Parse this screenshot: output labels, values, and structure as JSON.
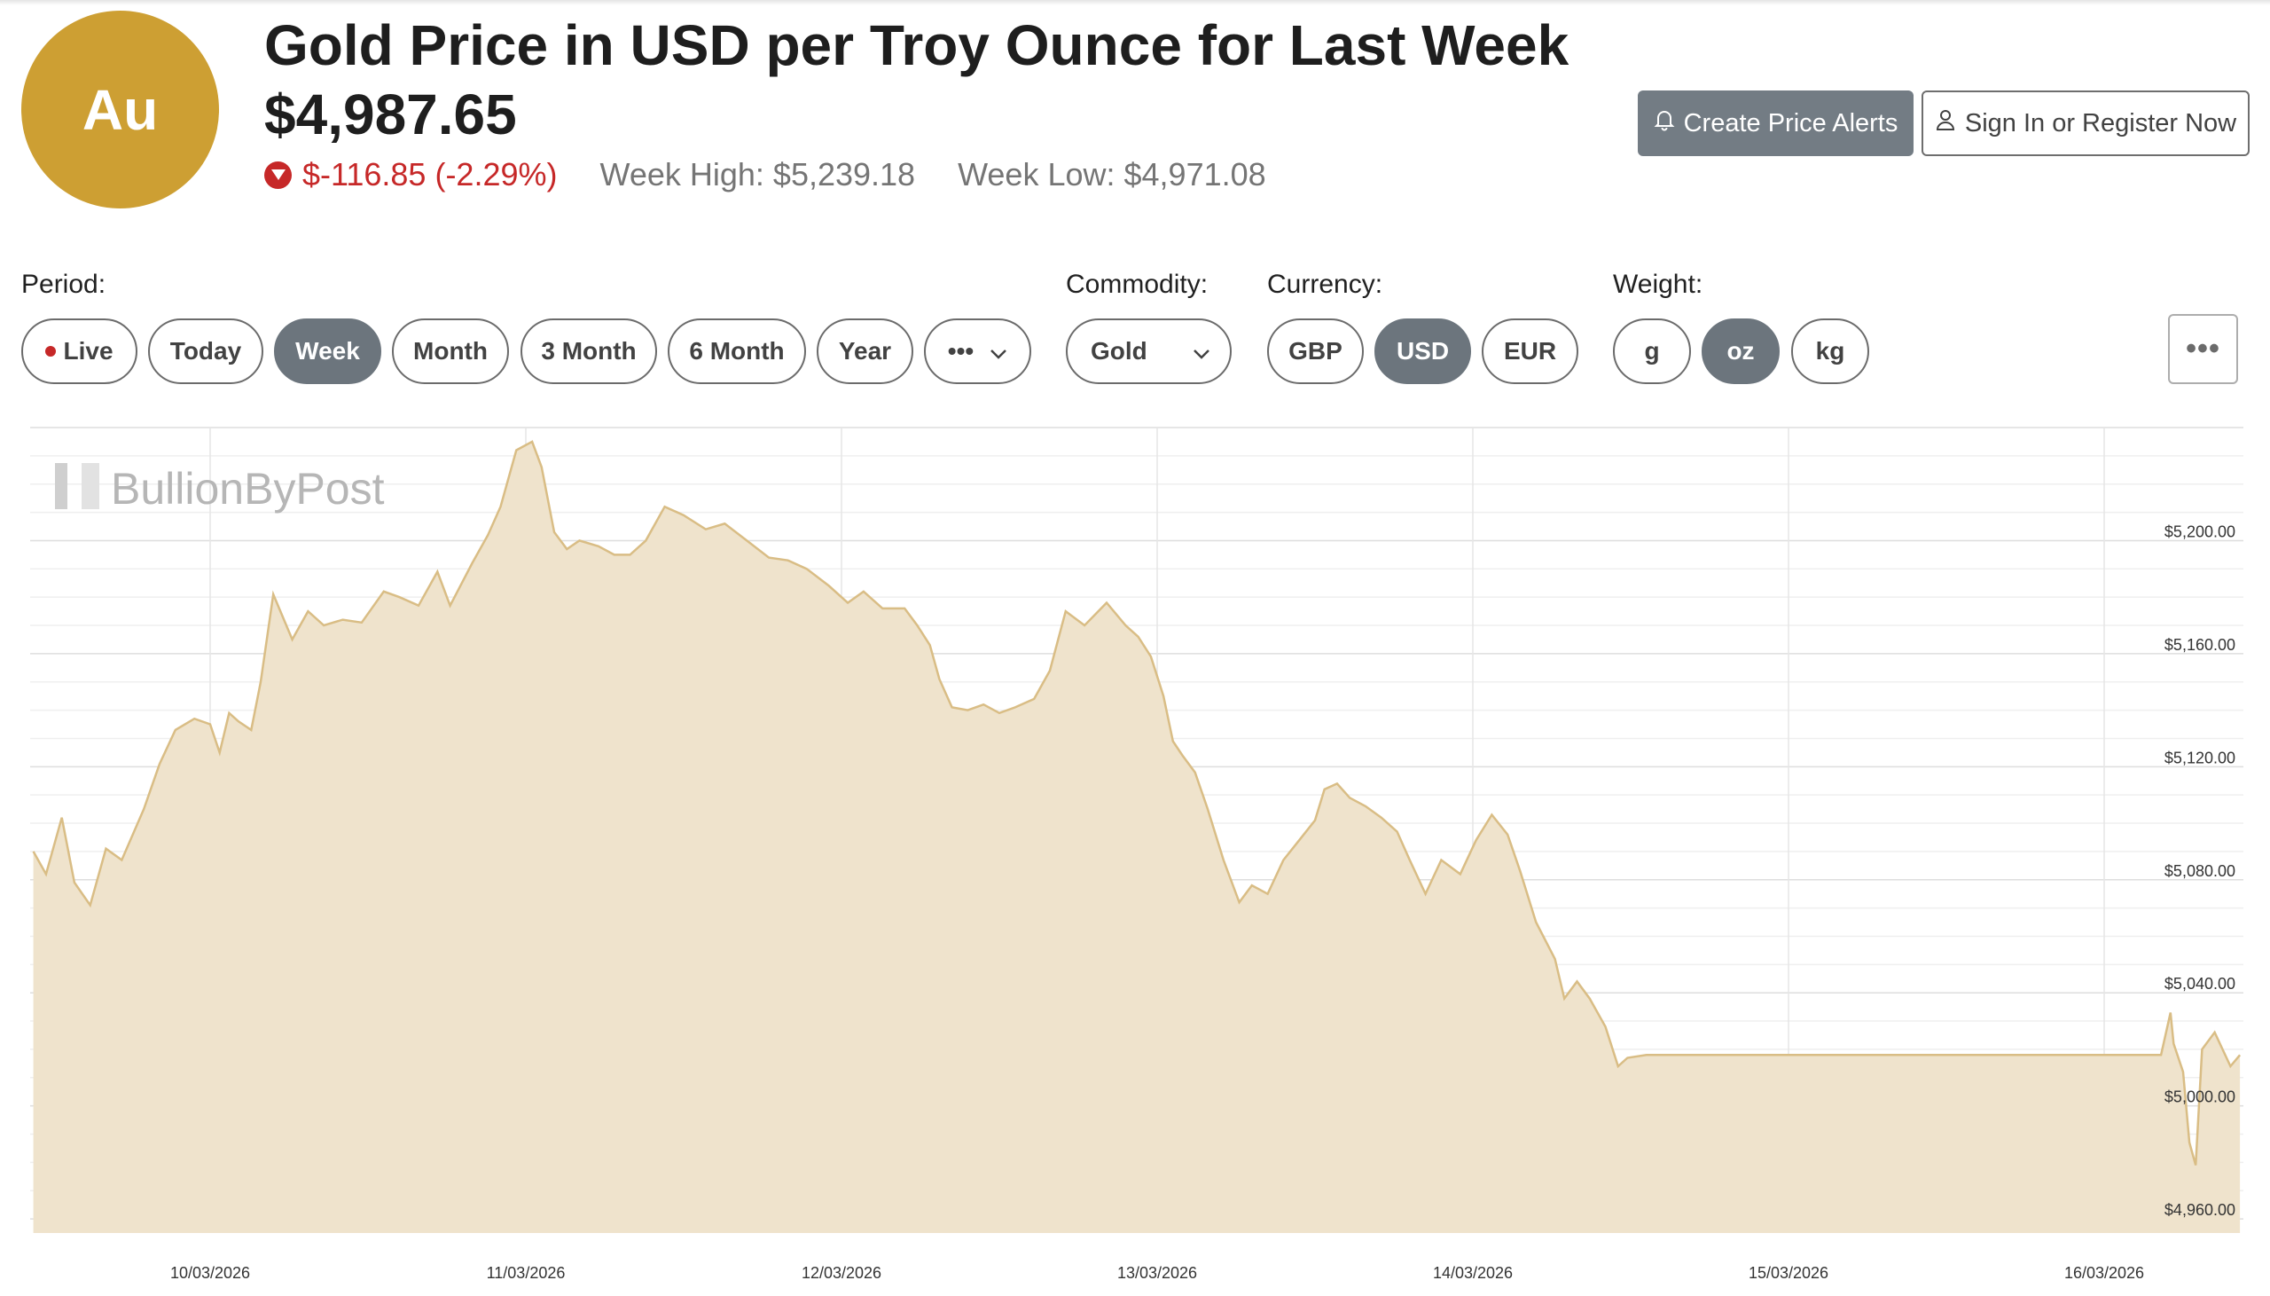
{
  "header": {
    "logo_text": "Au",
    "title": "Gold Price in USD per Troy Ounce for Last Week",
    "price": "$4,987.65",
    "change": "$-116.85 (-2.29%)",
    "week_high": "Week High: $5,239.18",
    "week_low": "Week Low: $4,971.08",
    "change_icon": "triangle-down-icon",
    "accent_color": "#cd9f33",
    "down_color": "#c62828"
  },
  "actions": {
    "create_alerts": "Create Price Alerts",
    "sign_in": "Sign In or Register Now"
  },
  "controls": {
    "period_label": "Period:",
    "periods": [
      "Live",
      "Today",
      "Week",
      "Month",
      "3 Month",
      "6 Month",
      "Year"
    ],
    "period_more": "•••",
    "selected_period": "Week",
    "commodity_label": "Commodity:",
    "commodity": "Gold",
    "currency_label": "Currency:",
    "currencies": [
      "GBP",
      "USD",
      "EUR"
    ],
    "selected_currency": "USD",
    "weight_label": "Weight:",
    "weights": [
      "g",
      "oz",
      "kg"
    ],
    "selected_weight": "oz",
    "more_menu": "•••"
  },
  "chart_data": {
    "type": "area",
    "watermark": "BullionByPost",
    "x_tick_labels": [
      "10/03/2026",
      "11/03/2026",
      "12/03/2026",
      "13/03/2026",
      "14/03/2026",
      "15/03/2026",
      "16/03/2026"
    ],
    "y_tick_labels": [
      "$5,200.00",
      "$5,160.00",
      "$5,120.00",
      "$5,080.00",
      "$5,040.00",
      "$5,000.00",
      "$4,960.00"
    ],
    "ylim": [
      4955,
      5240
    ],
    "xlim": [
      -0.56,
      6.43
    ],
    "grid": true,
    "line_color": "#d9bd85",
    "fill_color": "#efe3cc",
    "series": [
      {
        "points": [
          [
            -0.56,
            5090
          ],
          [
            -0.52,
            5082
          ],
          [
            -0.47,
            5102
          ],
          [
            -0.43,
            5079
          ],
          [
            -0.38,
            5071
          ],
          [
            -0.33,
            5091
          ],
          [
            -0.28,
            5087
          ],
          [
            -0.21,
            5105
          ],
          [
            -0.16,
            5121
          ],
          [
            -0.11,
            5133
          ],
          [
            -0.05,
            5137
          ],
          [
            0.0,
            5135
          ],
          [
            0.03,
            5125
          ],
          [
            0.06,
            5139
          ],
          [
            0.09,
            5136
          ],
          [
            0.13,
            5133
          ],
          [
            0.16,
            5150
          ],
          [
            0.2,
            5181
          ],
          [
            0.26,
            5165
          ],
          [
            0.31,
            5175
          ],
          [
            0.36,
            5170
          ],
          [
            0.42,
            5172
          ],
          [
            0.48,
            5171
          ],
          [
            0.55,
            5182
          ],
          [
            0.6,
            5180
          ],
          [
            0.66,
            5177
          ],
          [
            0.72,
            5189
          ],
          [
            0.76,
            5177
          ],
          [
            0.83,
            5192
          ],
          [
            0.88,
            5202
          ],
          [
            0.92,
            5212
          ],
          [
            0.97,
            5232
          ],
          [
            1.02,
            5235
          ],
          [
            1.05,
            5226
          ],
          [
            1.09,
            5203
          ],
          [
            1.13,
            5197
          ],
          [
            1.17,
            5200
          ],
          [
            1.23,
            5198
          ],
          [
            1.28,
            5195
          ],
          [
            1.33,
            5195
          ],
          [
            1.38,
            5200
          ],
          [
            1.44,
            5212
          ],
          [
            1.5,
            5209
          ],
          [
            1.57,
            5204
          ],
          [
            1.63,
            5206
          ],
          [
            1.7,
            5200
          ],
          [
            1.77,
            5194
          ],
          [
            1.83,
            5193
          ],
          [
            1.89,
            5190
          ],
          [
            1.96,
            5184
          ],
          [
            2.02,
            5178
          ],
          [
            2.07,
            5182
          ],
          [
            2.13,
            5176
          ],
          [
            2.2,
            5176
          ],
          [
            2.24,
            5170
          ],
          [
            2.28,
            5163
          ],
          [
            2.31,
            5151
          ],
          [
            2.35,
            5141
          ],
          [
            2.4,
            5140
          ],
          [
            2.45,
            5142
          ],
          [
            2.5,
            5139
          ],
          [
            2.55,
            5141
          ],
          [
            2.61,
            5144
          ],
          [
            2.66,
            5154
          ],
          [
            2.71,
            5175
          ],
          [
            2.77,
            5170
          ],
          [
            2.84,
            5178
          ],
          [
            2.9,
            5170
          ],
          [
            2.94,
            5166
          ],
          [
            2.98,
            5159
          ],
          [
            3.02,
            5145
          ],
          [
            3.05,
            5129
          ],
          [
            3.08,
            5124
          ],
          [
            3.12,
            5118
          ],
          [
            3.16,
            5105
          ],
          [
            3.21,
            5087
          ],
          [
            3.26,
            5072
          ],
          [
            3.3,
            5078
          ],
          [
            3.35,
            5075
          ],
          [
            3.4,
            5087
          ],
          [
            3.45,
            5094
          ],
          [
            3.5,
            5101
          ],
          [
            3.53,
            5112
          ],
          [
            3.57,
            5114
          ],
          [
            3.61,
            5109
          ],
          [
            3.66,
            5106
          ],
          [
            3.71,
            5102
          ],
          [
            3.76,
            5097
          ],
          [
            3.8,
            5087
          ],
          [
            3.85,
            5075
          ],
          [
            3.9,
            5087
          ],
          [
            3.96,
            5082
          ],
          [
            4.01,
            5094
          ],
          [
            4.06,
            5103
          ],
          [
            4.11,
            5096
          ],
          [
            4.15,
            5083
          ],
          [
            4.2,
            5065
          ],
          [
            4.26,
            5052
          ],
          [
            4.29,
            5038
          ],
          [
            4.33,
            5044
          ],
          [
            4.37,
            5038
          ],
          [
            4.42,
            5028
          ],
          [
            4.46,
            5014
          ],
          [
            4.49,
            5017
          ],
          [
            4.55,
            5018
          ],
          [
            4.8,
            5018
          ],
          [
            5.2,
            5018
          ],
          [
            5.6,
            5018
          ],
          [
            6.0,
            5018
          ],
          [
            6.18,
            5018
          ],
          [
            6.21,
            5033
          ],
          [
            6.22,
            5022
          ],
          [
            6.25,
            5012
          ],
          [
            6.27,
            4987
          ],
          [
            6.29,
            4979
          ],
          [
            6.31,
            5020
          ],
          [
            6.35,
            5026
          ],
          [
            6.4,
            5014
          ],
          [
            6.43,
            5018
          ]
        ]
      }
    ]
  }
}
